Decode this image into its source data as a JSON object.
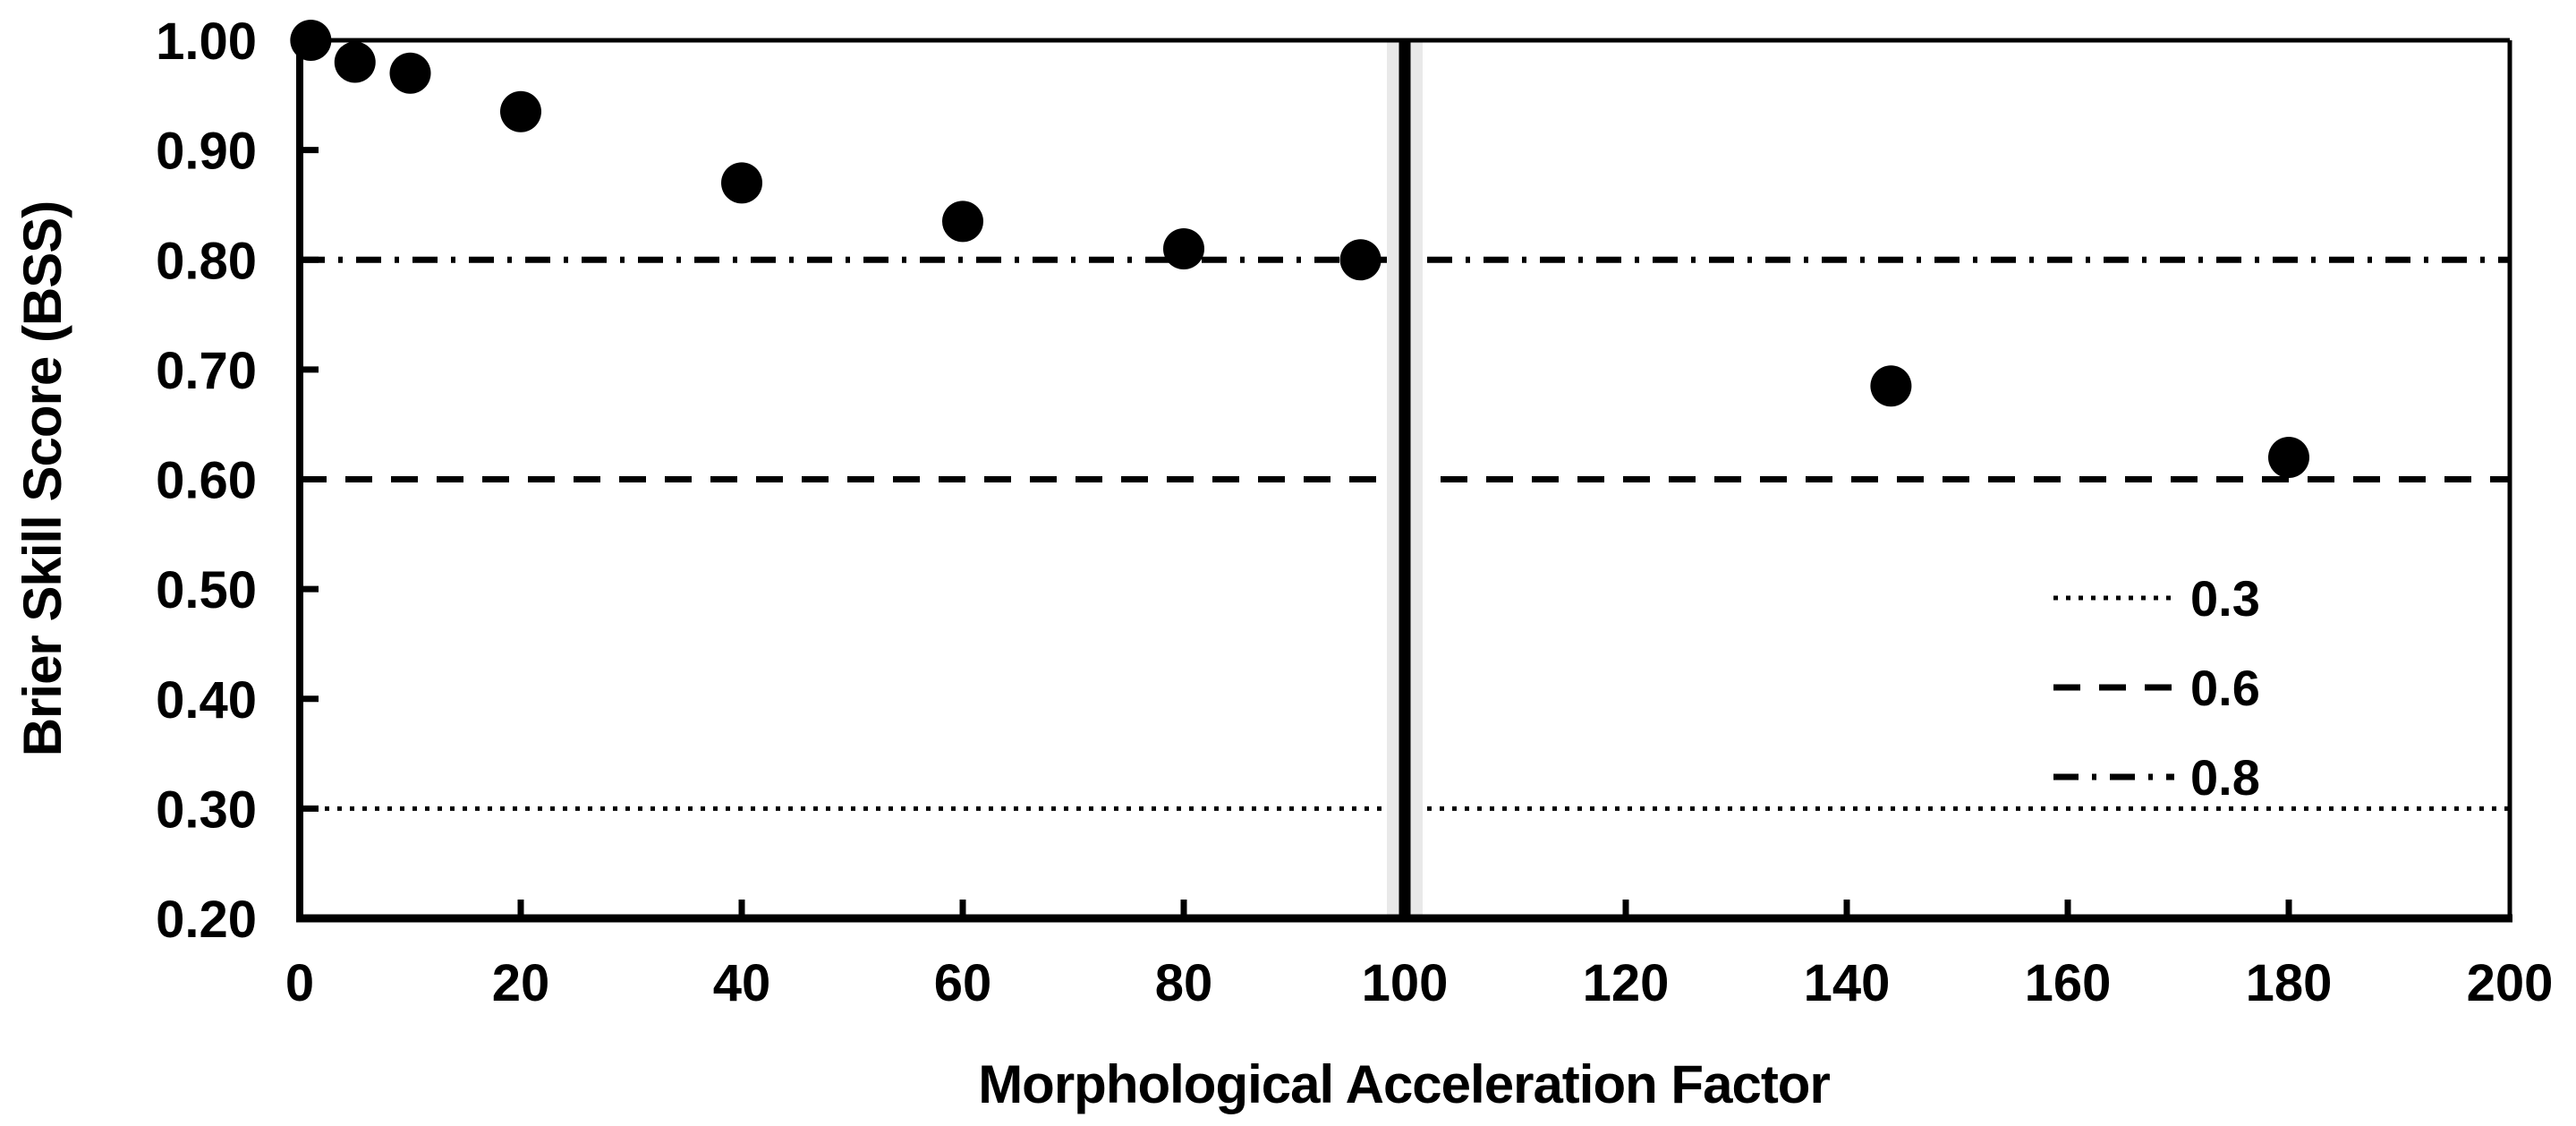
{
  "chart_data": {
    "type": "scatter",
    "title": "",
    "xlabel": "Morphological Acceleration Factor",
    "ylabel": "Brier Skill Score (BSS)",
    "xlim": [
      0,
      200
    ],
    "ylim": [
      0.2,
      1.0
    ],
    "x_ticks": [
      0,
      20,
      40,
      60,
      80,
      100,
      120,
      140,
      160,
      180,
      200
    ],
    "y_tick_labels": [
      "0.20",
      "0.30",
      "0.40",
      "0.50",
      "0.60",
      "0.70",
      "0.80",
      "0.90",
      "1.00"
    ],
    "grid": false,
    "marker": {
      "shape": "circle",
      "color": "#000000",
      "radius_px": 23
    },
    "series": [
      {
        "name": "BSS",
        "points": [
          {
            "x": 1,
            "y": 1.0
          },
          {
            "x": 5,
            "y": 0.98
          },
          {
            "x": 10,
            "y": 0.97
          },
          {
            "x": 20,
            "y": 0.935
          },
          {
            "x": 40,
            "y": 0.87
          },
          {
            "x": 60,
            "y": 0.835
          },
          {
            "x": 80,
            "y": 0.81
          },
          {
            "x": 96,
            "y": 0.8
          },
          {
            "x": 144,
            "y": 0.685
          },
          {
            "x": 180,
            "y": 0.62
          }
        ]
      }
    ],
    "reference_lines": [
      {
        "y": 0.3,
        "style": "dotted",
        "label": "0.3"
      },
      {
        "y": 0.6,
        "style": "dashed",
        "label": "0.6"
      },
      {
        "y": 0.8,
        "style": "dashdot",
        "label": "0.8"
      }
    ],
    "vertical_line": {
      "x": 100,
      "style": "solid",
      "color": "#000000",
      "halo_color": "#e9e9e9"
    },
    "legend": {
      "position": "inside-right",
      "entries": [
        {
          "label": "0.3",
          "style": "dotted"
        },
        {
          "label": "0.6",
          "style": "dashed"
        },
        {
          "label": "0.8",
          "style": "dashdot"
        }
      ]
    },
    "colors": {
      "foreground": "#000000",
      "background": "#ffffff"
    }
  }
}
